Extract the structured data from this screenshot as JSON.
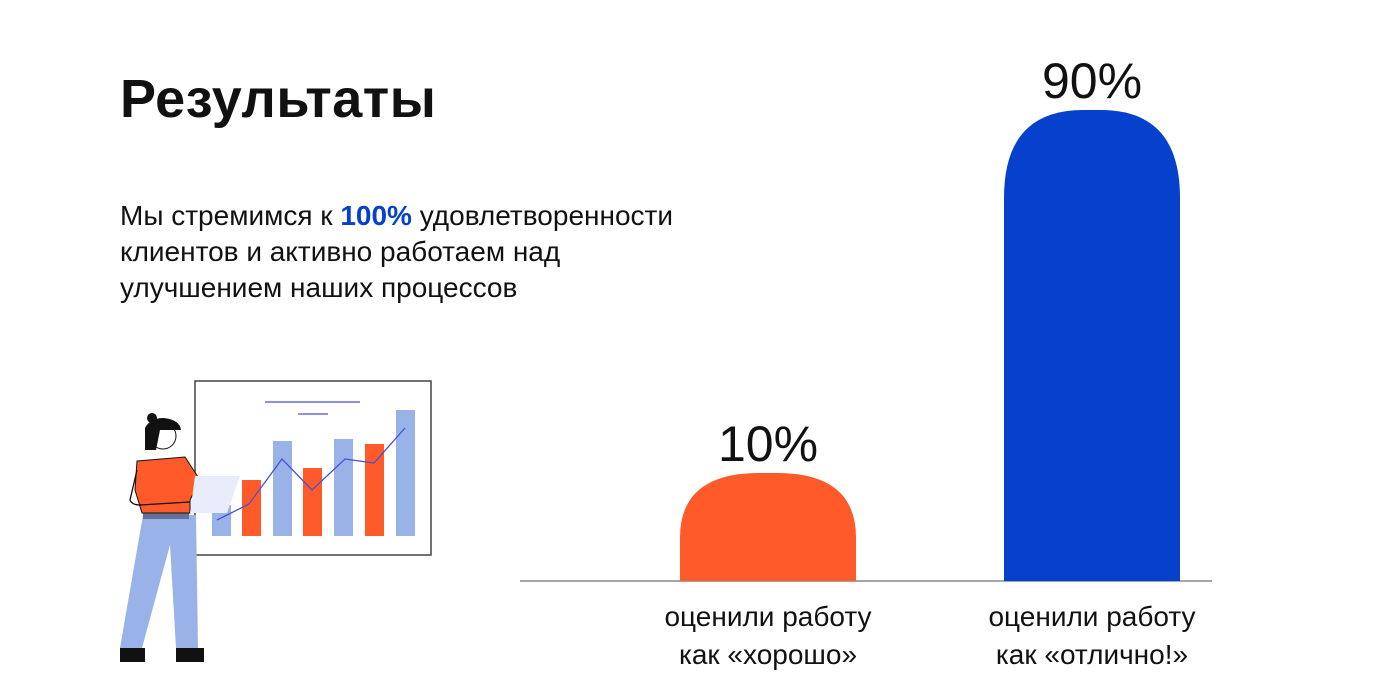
{
  "title": "Результаты",
  "intro": {
    "before": "Мы стремимся к ",
    "highlight": "100%",
    "after_line1": " удовлетворенности",
    "line2": "клиентов и активно работаем над",
    "line3": "улучшением наших процессов"
  },
  "colors": {
    "accent": "#0541cd",
    "orange": "#ff5a2a",
    "illustration_blue": "#99b3e8"
  },
  "illustration": "woman-presenting-chart",
  "chart_data": {
    "type": "bar",
    "categories": [
      "оценили работу как «хорошо»",
      "оценили работу как «отлично!»"
    ],
    "category_lines": [
      [
        "оценили работу",
        "как «хорошо»"
      ],
      [
        "оценили работу",
        "как «отлично!»"
      ]
    ],
    "values": [
      10,
      90
    ],
    "data_labels": [
      "10%",
      "90%"
    ],
    "bar_colors": [
      "#ff5a2a",
      "#0541cd"
    ],
    "grid": false
  }
}
